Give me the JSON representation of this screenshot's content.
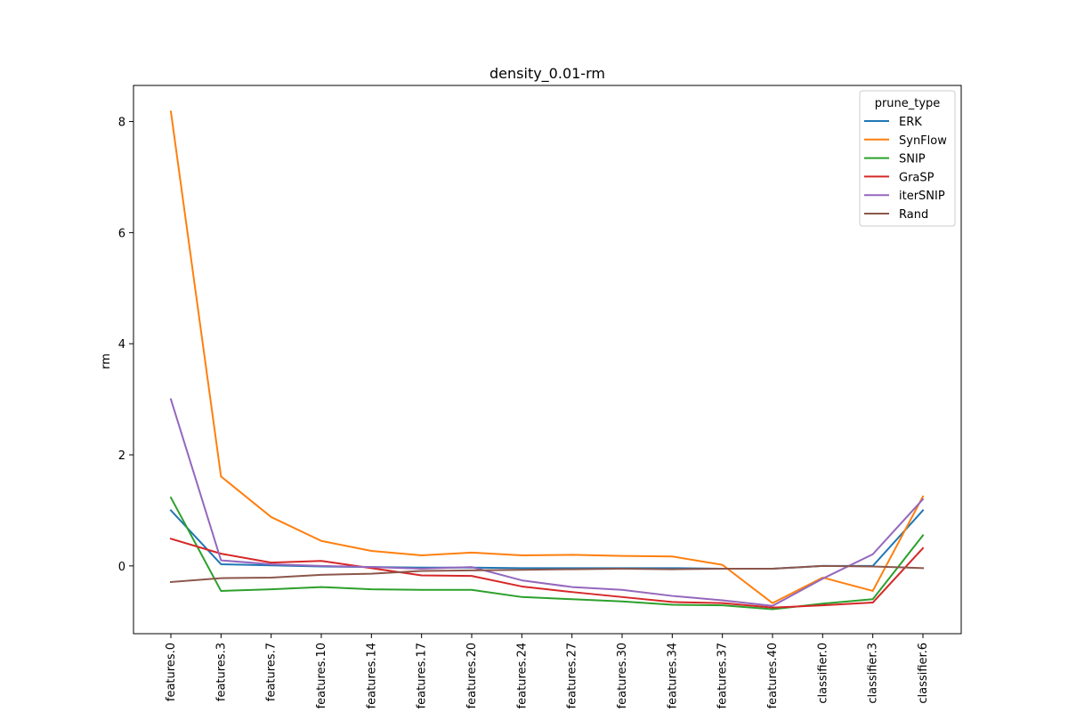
{
  "chart_data": {
    "type": "line",
    "title": "density_0.01-rm",
    "xlabel": "",
    "ylabel": "rm",
    "categories": [
      "features.0",
      "features.3",
      "features.7",
      "features.10",
      "features.14",
      "features.17",
      "features.20",
      "features.24",
      "features.27",
      "features.30",
      "features.34",
      "features.37",
      "features.40",
      "classifier.0",
      "classifier.3",
      "classifier.6"
    ],
    "ylim": [
      -1.22,
      8.65
    ],
    "yticks": [
      0,
      2,
      4,
      6,
      8
    ],
    "grid": false,
    "legend": {
      "title": "prune_type",
      "placement": "top-right"
    },
    "series": [
      {
        "name": "ERK",
        "color": "#1f77b4",
        "values": [
          1.0,
          0.03,
          0.01,
          -0.01,
          -0.02,
          -0.03,
          -0.03,
          -0.04,
          -0.04,
          -0.04,
          -0.04,
          -0.05,
          -0.05,
          0.0,
          0.0,
          1.0
        ]
      },
      {
        "name": "SynFlow",
        "color": "#ff7f0e",
        "values": [
          8.18,
          1.61,
          0.88,
          0.45,
          0.27,
          0.19,
          0.24,
          0.19,
          0.2,
          0.18,
          0.17,
          0.02,
          -0.67,
          -0.21,
          -0.45,
          1.25
        ]
      },
      {
        "name": "SNIP",
        "color": "#2ca02c",
        "values": [
          1.23,
          -0.45,
          -0.42,
          -0.38,
          -0.42,
          -0.43,
          -0.43,
          -0.56,
          -0.6,
          -0.64,
          -0.7,
          -0.71,
          -0.78,
          -0.68,
          -0.6,
          0.55
        ]
      },
      {
        "name": "GraSP",
        "color": "#d62728",
        "values": [
          0.49,
          0.22,
          0.06,
          0.09,
          -0.04,
          -0.17,
          -0.18,
          -0.37,
          -0.47,
          -0.56,
          -0.65,
          -0.67,
          -0.75,
          -0.71,
          -0.66,
          0.32
        ]
      },
      {
        "name": "iterSNIP",
        "color": "#9467bd",
        "values": [
          3.0,
          0.1,
          0.03,
          0.0,
          -0.02,
          -0.05,
          -0.02,
          -0.26,
          -0.38,
          -0.43,
          -0.54,
          -0.62,
          -0.72,
          -0.23,
          0.21,
          1.2
        ]
      },
      {
        "name": "Rand",
        "color": "#8c564b",
        "values": [
          -0.29,
          -0.22,
          -0.21,
          -0.16,
          -0.14,
          -0.09,
          -0.08,
          -0.07,
          -0.06,
          -0.05,
          -0.06,
          -0.05,
          -0.05,
          0.0,
          -0.01,
          -0.04
        ]
      }
    ]
  }
}
